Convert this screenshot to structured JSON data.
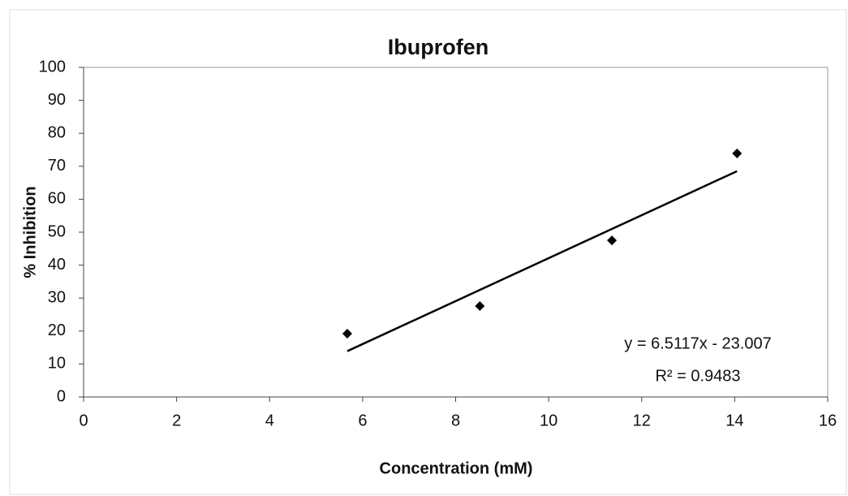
{
  "chart_data": {
    "type": "scatter",
    "title": "Ibuprofen",
    "x_label": "Concentration (mM)",
    "y_label": "% Inhibition",
    "series": [
      {
        "name": "Ibuprofen",
        "color": "#000000",
        "x": [
          5.67,
          8.52,
          11.36,
          14.05
        ],
        "values": [
          19.2,
          27.6,
          47.5,
          73.9
        ]
      }
    ],
    "trendline": {
      "color": "#000000",
      "x": [
        5.67,
        14.05
      ],
      "values": [
        13.9,
        68.5
      ]
    },
    "annotations": [
      "y = 6.5117x - 23.007",
      "R² = 0.9483"
    ],
    "xlim": [
      0,
      16
    ],
    "xticks": [
      0,
      2,
      4,
      6,
      8,
      10,
      12,
      14,
      16
    ],
    "ylim": [
      0,
      100
    ],
    "yticks": [
      0,
      10,
      20,
      30,
      40,
      50,
      60,
      70,
      80,
      90,
      100
    ],
    "grid": false
  }
}
